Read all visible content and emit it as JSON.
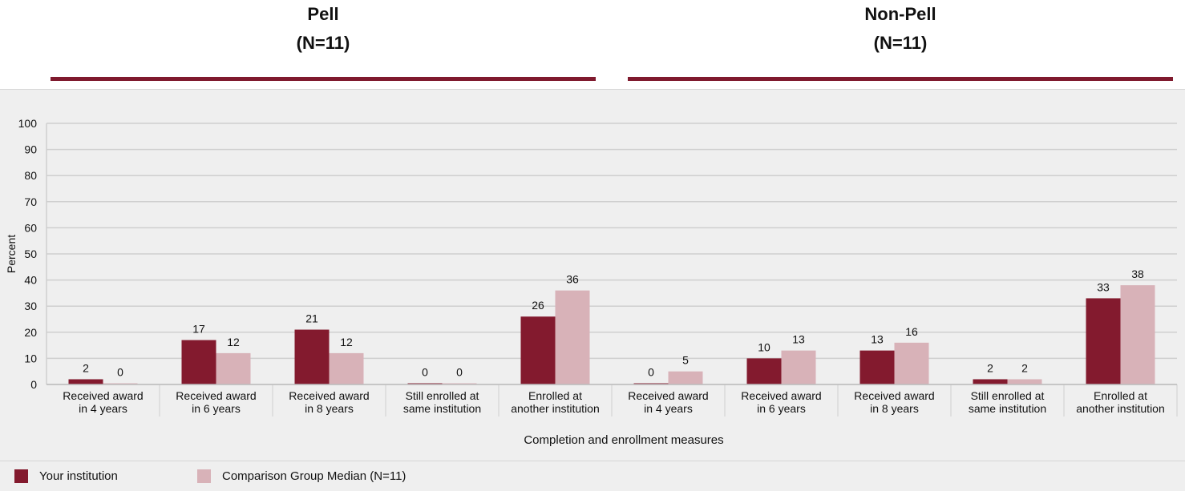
{
  "groups": [
    {
      "title": "Pell",
      "subtitle": "(N=11)"
    },
    {
      "title": "Non-Pell",
      "subtitle": "(N=11)"
    }
  ],
  "colors": {
    "your_institution": "#831a2e",
    "comparison": "#d8b2b8",
    "rule": "#7f1a2e",
    "grid": "#cfcfcf"
  },
  "legend": {
    "your_institution": "Your institution",
    "comparison": "Comparison Group Median (N=11)"
  },
  "chart_data": {
    "type": "bar",
    "ylabel": "Percent",
    "xlabel": "Completion and enrollment measures",
    "ylim": [
      0,
      100
    ],
    "yticks": [
      0,
      10,
      20,
      30,
      40,
      50,
      60,
      70,
      80,
      90,
      100
    ],
    "grid": true,
    "legend_position": "bottom",
    "categories": [
      [
        "Received award",
        "in 4 years"
      ],
      [
        "Received award",
        "in 6 years"
      ],
      [
        "Received award",
        "in 8 years"
      ],
      [
        "Still enrolled at",
        "same institution"
      ],
      [
        "Enrolled at",
        "another institution"
      ],
      [
        "Received award",
        "in 4 years"
      ],
      [
        "Received award",
        "in 6 years"
      ],
      [
        "Received award",
        "in 8 years"
      ],
      [
        "Still enrolled at",
        "same institution"
      ],
      [
        "Enrolled at",
        "another institution"
      ]
    ],
    "series": [
      {
        "name": "Your institution",
        "values": [
          2,
          17,
          21,
          0,
          26,
          0,
          10,
          13,
          2,
          33
        ]
      },
      {
        "name": "Comparison Group Median (N=11)",
        "values": [
          0,
          12,
          12,
          0,
          36,
          5,
          13,
          16,
          2,
          38
        ]
      }
    ]
  }
}
